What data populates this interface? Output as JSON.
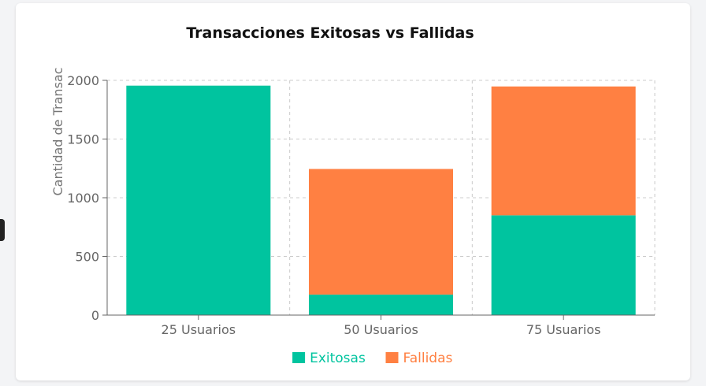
{
  "chart_data": {
    "type": "bar",
    "stacked": true,
    "title": "Transacciones Exitosas vs Fallidas",
    "xlabel": "",
    "ylabel": "Cantidad de Transac",
    "categories": [
      "25 Usuarios",
      "50 Usuarios",
      "75 Usuarios"
    ],
    "series": [
      {
        "name": "Exitosas",
        "color": "#00c49f",
        "values": [
          1955,
          175,
          850
        ]
      },
      {
        "name": "Fallidas",
        "color": "#ff8042",
        "values": [
          0,
          1070,
          1098
        ]
      }
    ],
    "ylim": [
      0,
      2000
    ],
    "yticks": [
      0,
      500,
      1000,
      1500,
      2000
    ],
    "grid": true,
    "legend": "bottom"
  }
}
